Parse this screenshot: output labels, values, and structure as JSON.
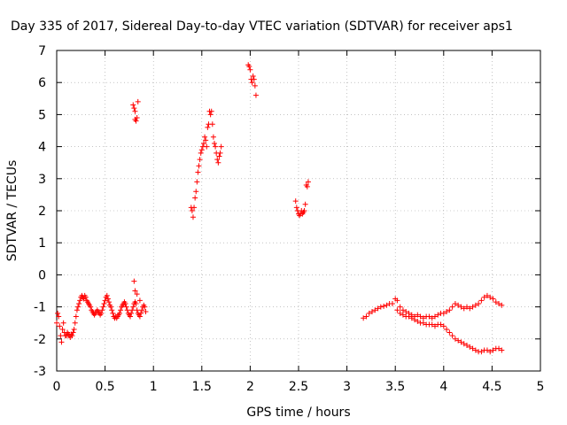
{
  "chart_data": {
    "type": "scatter",
    "title": "Day 335 of 2017, Sidereal Day-to-day VTEC variation (SDTVAR) for receiver aps1",
    "xlabel": "GPS time / hours",
    "ylabel": "SDTVAR / TECUs",
    "xlim": [
      0,
      5
    ],
    "ylim": [
      -3,
      7
    ],
    "xticks": [
      0,
      0.5,
      1,
      1.5,
      2,
      2.5,
      3,
      3.5,
      4,
      4.5,
      5
    ],
    "yticks": [
      -3,
      -2,
      -1,
      0,
      1,
      2,
      3,
      4,
      5,
      6,
      7
    ],
    "marker": "+",
    "color": "#ff0000",
    "grid": true,
    "series": [
      {
        "name": "SDTVAR",
        "segments": [
          {
            "x": [
              0.0,
              0.01,
              0.02,
              0.03,
              0.04,
              0.05,
              0.06,
              0.07,
              0.08,
              0.09,
              0.1,
              0.11,
              0.12,
              0.13,
              0.14,
              0.15,
              0.16,
              0.17,
              0.18,
              0.19,
              0.2,
              0.21,
              0.22,
              0.23,
              0.24,
              0.25,
              0.26,
              0.27,
              0.28,
              0.29,
              0.3,
              0.31,
              0.32,
              0.33,
              0.34,
              0.35,
              0.36,
              0.37,
              0.38,
              0.39,
              0.4,
              0.41,
              0.42,
              0.43,
              0.44,
              0.45,
              0.46,
              0.47,
              0.48,
              0.49,
              0.5,
              0.51,
              0.52,
              0.53,
              0.54,
              0.55,
              0.56,
              0.57,
              0.58,
              0.59,
              0.6,
              0.61,
              0.62,
              0.63,
              0.64,
              0.65,
              0.66,
              0.67,
              0.68,
              0.69,
              0.7,
              0.71,
              0.72,
              0.73,
              0.74,
              0.75,
              0.76,
              0.77,
              0.78,
              0.79,
              0.8,
              0.81,
              0.82,
              0.83,
              0.84,
              0.85,
              0.86,
              0.87,
              0.88,
              0.89,
              0.9,
              0.91,
              0.92
            ],
            "y": [
              -1.5,
              -1.2,
              -1.3,
              -1.6,
              -1.9,
              -2.1,
              -1.7,
              -1.5,
              -1.8,
              -1.9,
              -1.9,
              -1.8,
              -1.85,
              -1.9,
              -1.95,
              -1.85,
              -1.9,
              -1.8,
              -1.7,
              -1.5,
              -1.3,
              -1.1,
              -1.0,
              -0.9,
              -0.8,
              -0.7,
              -0.65,
              -0.7,
              -0.75,
              -0.65,
              -0.7,
              -0.8,
              -0.85,
              -0.9,
              -0.95,
              -1.0,
              -1.1,
              -1.15,
              -1.2,
              -1.25,
              -1.2,
              -1.15,
              -1.1,
              -1.15,
              -1.2,
              -1.25,
              -1.2,
              -1.1,
              -1.0,
              -0.9,
              -0.8,
              -0.7,
              -0.65,
              -0.75,
              -0.85,
              -0.95,
              -1.0,
              -1.1,
              -1.2,
              -1.3,
              -1.35,
              -1.3,
              -1.35,
              -1.3,
              -1.25,
              -1.2,
              -1.1,
              -1.0,
              -0.95,
              -0.9,
              -0.85,
              -0.9,
              -1.0,
              -1.1,
              -1.2,
              -1.25,
              -1.3,
              -1.2,
              -1.1,
              -1.0,
              -0.9,
              -0.85,
              -0.9,
              -1.1,
              -1.2,
              -1.25,
              -1.3,
              -1.2,
              -1.1,
              -1.0,
              -0.95,
              -1.0,
              -1.15
            ]
          },
          {
            "x": [
              0.79,
              0.8,
              0.81,
              0.81,
              0.82,
              0.83,
              0.84
            ],
            "y": [
              5.3,
              5.2,
              5.1,
              4.85,
              4.8,
              4.9,
              5.4
            ]
          },
          {
            "x": [
              0.8,
              0.81,
              0.83,
              0.86
            ],
            "y": [
              -0.2,
              -0.5,
              -0.6,
              -0.8
            ]
          },
          {
            "x": [
              1.39,
              1.4,
              1.41,
              1.42,
              1.43,
              1.44,
              1.45,
              1.46,
              1.47,
              1.48,
              1.49,
              1.5,
              1.51,
              1.52,
              1.53,
              1.54,
              1.55,
              1.56,
              1.57,
              1.58,
              1.59,
              1.6,
              1.61,
              1.62,
              1.63,
              1.64,
              1.65,
              1.66,
              1.67,
              1.68,
              1.69,
              1.7
            ],
            "y": [
              2.1,
              2.0,
              1.8,
              2.1,
              2.4,
              2.6,
              2.9,
              3.2,
              3.4,
              3.6,
              3.8,
              3.9,
              4.0,
              4.1,
              4.3,
              4.2,
              4.0,
              4.6,
              4.7,
              5.1,
              5.0,
              5.1,
              4.7,
              4.3,
              4.1,
              4.0,
              3.8,
              3.6,
              3.5,
              3.7,
              3.8,
              4.0
            ]
          },
          {
            "x": [
              1.98,
              1.99,
              2.0,
              2.01,
              2.02,
              2.03,
              2.04,
              2.05,
              2.06
            ],
            "y": [
              6.55,
              6.5,
              6.4,
              6.1,
              6.0,
              6.2,
              6.1,
              5.9,
              5.6
            ]
          },
          {
            "x": [
              2.47,
              2.48,
              2.49,
              2.5,
              2.51,
              2.52,
              2.53,
              2.54,
              2.55,
              2.56,
              2.57,
              2.58,
              2.59,
              2.6
            ],
            "y": [
              2.3,
              2.1,
              2.0,
              1.9,
              1.85,
              1.9,
              2.0,
              1.9,
              1.95,
              2.0,
              2.2,
              2.8,
              2.75,
              2.9
            ]
          },
          {
            "x": [
              3.17,
              3.2,
              3.23,
              3.26,
              3.29,
              3.32,
              3.35,
              3.38,
              3.41,
              3.44,
              3.47,
              3.5,
              3.52,
              3.55,
              3.58,
              3.61,
              3.64,
              3.67,
              3.7,
              3.73,
              3.76,
              3.79,
              3.82,
              3.85,
              3.88,
              3.91,
              3.94,
              3.97,
              4.0,
              4.03,
              4.06,
              4.09,
              4.12,
              4.15,
              4.18,
              4.21,
              4.24,
              4.27,
              4.3,
              4.33,
              4.36,
              4.39,
              4.42,
              4.45,
              4.48,
              4.51,
              4.54,
              4.57,
              4.6
            ],
            "y": [
              -1.35,
              -1.3,
              -1.2,
              -1.15,
              -1.1,
              -1.05,
              -1.0,
              -0.98,
              -0.95,
              -0.9,
              -0.9,
              -0.75,
              -1.1,
              -1.2,
              -1.25,
              -1.3,
              -1.3,
              -1.35,
              -1.4,
              -1.45,
              -1.5,
              -1.5,
              -1.55,
              -1.55,
              -1.55,
              -1.6,
              -1.55,
              -1.55,
              -1.6,
              -1.7,
              -1.8,
              -1.9,
              -2.0,
              -2.05,
              -2.1,
              -2.15,
              -2.2,
              -2.25,
              -2.3,
              -2.35,
              -2.4,
              -2.4,
              -2.35,
              -2.35,
              -2.4,
              -2.35,
              -2.3,
              -2.3,
              -2.35
            ]
          },
          {
            "x": [
              3.52,
              3.55,
              3.58,
              3.61,
              3.64,
              3.67,
              3.7,
              3.73,
              3.76,
              3.79,
              3.82,
              3.85,
              3.88,
              3.91,
              3.94,
              3.97,
              4.0,
              4.03,
              4.06,
              4.09,
              4.12,
              4.15,
              4.18,
              4.21,
              4.24,
              4.27,
              4.3,
              4.33,
              4.36,
              4.39,
              4.42,
              4.45,
              4.48,
              4.51,
              4.54,
              4.57,
              4.6
            ],
            "y": [
              -0.8,
              -1.0,
              -1.1,
              -1.15,
              -1.2,
              -1.25,
              -1.3,
              -1.25,
              -1.3,
              -1.35,
              -1.3,
              -1.3,
              -1.35,
              -1.3,
              -1.25,
              -1.2,
              -1.2,
              -1.15,
              -1.1,
              -1.0,
              -0.9,
              -0.95,
              -1.0,
              -1.05,
              -1.0,
              -1.05,
              -1.0,
              -0.95,
              -0.9,
              -0.8,
              -0.7,
              -0.65,
              -0.7,
              -0.75,
              -0.85,
              -0.9,
              -0.95
            ]
          }
        ]
      }
    ]
  }
}
